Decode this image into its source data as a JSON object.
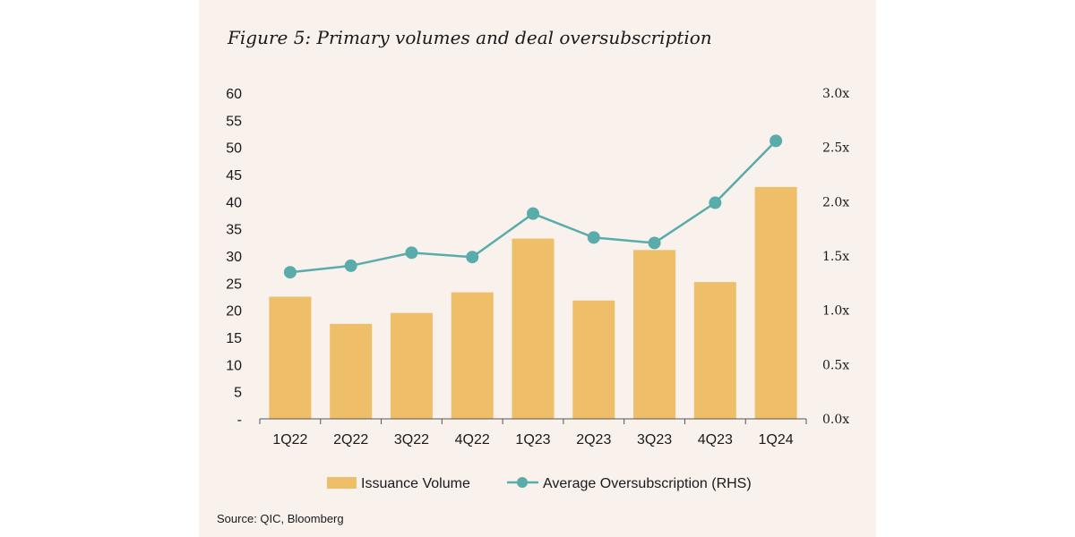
{
  "title": "Figure 5: Primary volumes and deal oversubscription",
  "source": "Source: QIC, Bloomberg",
  "colors": {
    "bar": "#eebf68",
    "line": "#5aacaa",
    "background": "#f8f1ec"
  },
  "chart_data": {
    "type": "bar",
    "title": "Figure 5: Primary volumes and deal oversubscription",
    "categories": [
      "1Q22",
      "2Q22",
      "3Q22",
      "4Q22",
      "1Q23",
      "2Q23",
      "3Q23",
      "4Q23",
      "1Q24"
    ],
    "series": [
      {
        "name": "Issuance Volume",
        "type": "bar",
        "axis": "left",
        "values": [
          22.5,
          17.5,
          19.5,
          23.3,
          33.2,
          21.8,
          31.1,
          25.2,
          42.7
        ]
      },
      {
        "name": "Average Oversubscription (RHS)",
        "type": "line",
        "axis": "right",
        "values": [
          1.35,
          1.41,
          1.53,
          1.49,
          1.89,
          1.67,
          1.62,
          1.99,
          2.56
        ]
      }
    ],
    "y_left": {
      "min": 0,
      "max": 60,
      "step": 5,
      "tick_labels": [
        "-",
        "5",
        "10",
        "15",
        "20",
        "25",
        "30",
        "35",
        "40",
        "45",
        "50",
        "55",
        "60"
      ]
    },
    "y_right": {
      "min": 0,
      "max": 3,
      "step": 0.5,
      "tick_labels": [
        "0.0x",
        "0.5x",
        "1.0x",
        "1.5x",
        "2.0x",
        "2.5x",
        "3.0x"
      ]
    },
    "legend": [
      "Issuance Volume",
      "Average Oversubscription (RHS)"
    ],
    "legend_position": "bottom",
    "grid": false
  }
}
